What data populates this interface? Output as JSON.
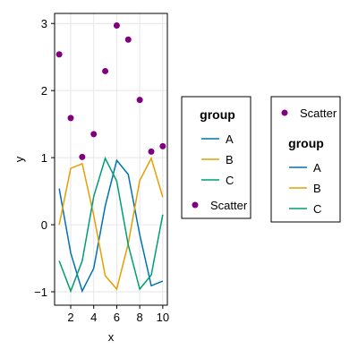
{
  "chart_data": {
    "type": "line",
    "xlabel": "x",
    "ylabel": "y",
    "xlim": [
      0.6,
      10.4
    ],
    "ylim": [
      -1.2,
      3.15
    ],
    "xticks": [
      2,
      4,
      6,
      8,
      10
    ],
    "yticks": [
      -1,
      0,
      1,
      2,
      3
    ],
    "grid": true,
    "x": [
      1,
      2,
      3,
      4,
      5,
      6,
      7,
      8,
      9,
      10
    ],
    "series": [
      {
        "name": "A",
        "type": "line",
        "color": "#0072B2",
        "values": [
          0.54,
          -0.42,
          -0.99,
          -0.65,
          0.28,
          0.96,
          0.75,
          -0.15,
          -0.91,
          -0.84
        ]
      },
      {
        "name": "B",
        "type": "line",
        "color": "#E69F00",
        "values": [
          0.0,
          0.84,
          0.91,
          0.14,
          -0.76,
          -0.96,
          -0.28,
          0.66,
          0.99,
          0.41
        ]
      },
      {
        "name": "C",
        "type": "line",
        "color": "#009E73",
        "values": [
          -0.54,
          -0.99,
          -0.54,
          0.42,
          0.99,
          0.65,
          -0.3,
          -0.96,
          -0.75,
          0.15
        ]
      },
      {
        "name": "Scatter",
        "type": "scatter",
        "color": "#800080",
        "values": [
          2.54,
          1.59,
          1.01,
          1.35,
          2.29,
          2.97,
          2.76,
          1.86,
          1.09,
          1.17
        ]
      }
    ],
    "legends": [
      {
        "placement": "right-inner",
        "title": "group",
        "entries": [
          "A",
          "B",
          "C"
        ],
        "extra": [
          "Scatter"
        ]
      },
      {
        "placement": "right-outer",
        "extra_first": [
          "Scatter"
        ],
        "title": "group",
        "entries": [
          "A",
          "B",
          "C"
        ]
      }
    ]
  }
}
